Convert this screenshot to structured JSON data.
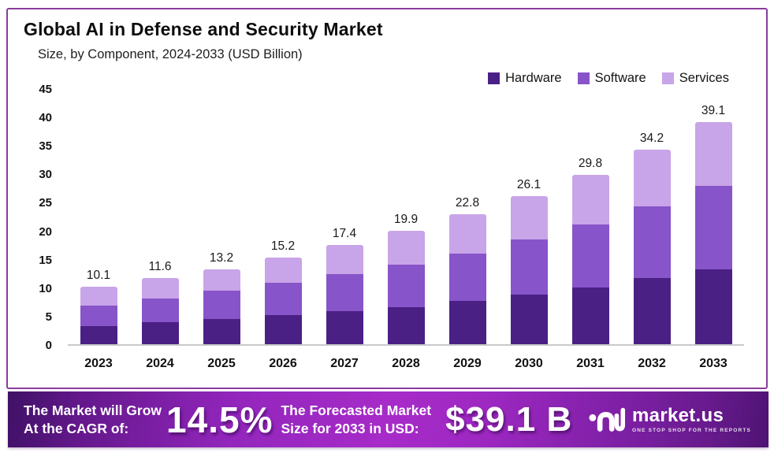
{
  "header": {
    "title": "Global AI in Defense and Security Market",
    "subtitle": "Size, by Component, 2024-2033 (USD Billion)"
  },
  "chart_data": {
    "type": "bar",
    "variant": "stacked",
    "title": "Global AI in Defense and Security Market",
    "subtitle": "Size, by Component, 2024-2033 (USD Billion)",
    "unit": "USD Billion",
    "categories": [
      "2023",
      "2024",
      "2025",
      "2026",
      "2027",
      "2028",
      "2029",
      "2030",
      "2031",
      "2032",
      "2033"
    ],
    "totals": [
      10.1,
      11.6,
      13.2,
      15.2,
      17.4,
      19.9,
      22.8,
      26.1,
      29.8,
      34.2,
      39.1
    ],
    "series": [
      {
        "name": "Hardware",
        "color": "#4a2085",
        "values": [
          3.2,
          3.9,
          4.5,
          5.1,
          5.8,
          6.5,
          7.6,
          8.7,
          10.0,
          11.6,
          13.2
        ]
      },
      {
        "name": "Software",
        "color": "#8754c9",
        "values": [
          3.6,
          4.1,
          4.9,
          5.7,
          6.5,
          7.5,
          8.3,
          9.7,
          11.0,
          12.7,
          14.7
        ]
      },
      {
        "name": "Services",
        "color": "#c8a4e8",
        "values": [
          3.3,
          3.6,
          3.8,
          4.4,
          5.1,
          5.9,
          6.9,
          7.7,
          8.8,
          9.9,
          11.2
        ]
      }
    ],
    "yticks": [
      45,
      40,
      35,
      30,
      25,
      20,
      15,
      10,
      5,
      0
    ],
    "ylim": [
      0,
      45
    ],
    "grid": false,
    "legend_position": "top-right"
  },
  "banner": {
    "cagr_label_line1": "The Market will Grow",
    "cagr_label_line2": "At the CAGR of:",
    "cagr_value": "14.5%",
    "forecast_label_line1": "The Forecasted Market",
    "forecast_label_line2": "Size for 2033 in USD:",
    "forecast_value": "$39.1 B",
    "logo_name": "market.us",
    "logo_tagline": "ONE STOP SHOP FOR THE REPORTS"
  },
  "colors": {
    "panel_border": "#8a3c9c",
    "axis_line": "#c9c9c9",
    "hardware": "#4a2085",
    "software": "#8754c9",
    "services": "#c8a4e8",
    "banner_gradient_dark": "#3f1166",
    "banner_gradient_bright": "#a72bc8",
    "text": "#111111"
  }
}
